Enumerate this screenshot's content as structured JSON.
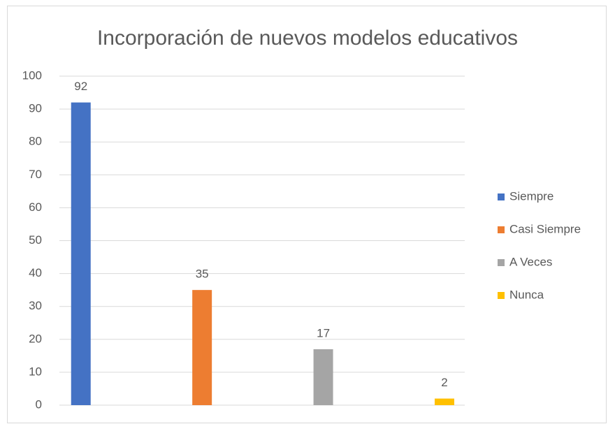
{
  "chart_data": {
    "type": "bar",
    "title": "Incorporación de nuevos modelos educativos",
    "categories": [
      null
    ],
    "series": [
      {
        "name": "Siempre",
        "color": "#4472c4",
        "values": [
          92
        ]
      },
      {
        "name": "Casi Siempre",
        "color": "#ed7d31",
        "values": [
          35
        ]
      },
      {
        "name": "A Veces",
        "color": "#a5a5a5",
        "values": [
          17
        ]
      },
      {
        "name": "Nunca",
        "color": "#ffc000",
        "values": [
          2
        ]
      }
    ],
    "ylim": [
      0,
      100
    ],
    "yticks": [
      0,
      10,
      20,
      30,
      40,
      50,
      60,
      70,
      80,
      90,
      100
    ],
    "grid": true,
    "legend": "right"
  }
}
